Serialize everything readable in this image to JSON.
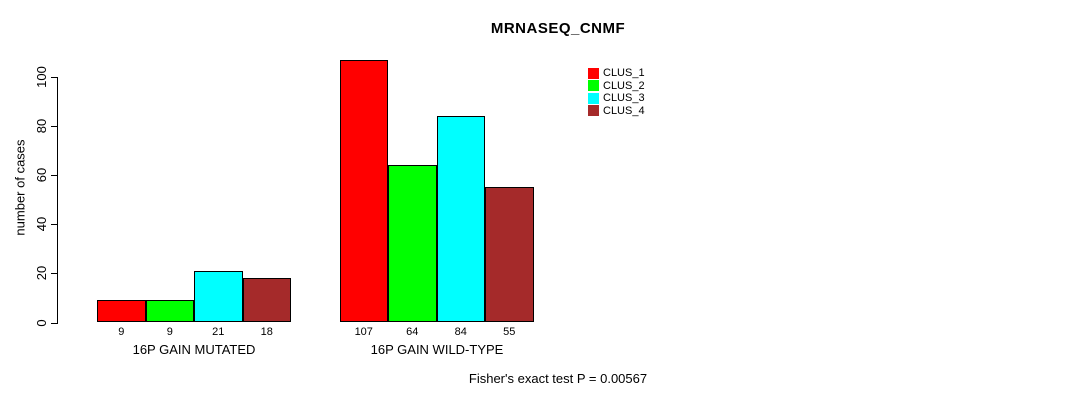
{
  "chart_data": {
    "type": "bar",
    "title": "MRNASEQ_CNMF",
    "ylabel": "number of cases",
    "xlabel": "",
    "ylim": [
      0,
      107
    ],
    "yticks": [
      0,
      20,
      40,
      60,
      80,
      100
    ],
    "grid": false,
    "legend_position": "top-right",
    "categories": [
      "16P GAIN MUTATED",
      "16P GAIN WILD-TYPE"
    ],
    "series": [
      {
        "name": "CLUS_1",
        "color": "#ff0000",
        "values": [
          9,
          107
        ]
      },
      {
        "name": "CLUS_2",
        "color": "#00ff00",
        "values": [
          9,
          64
        ]
      },
      {
        "name": "CLUS_3",
        "color": "#00ffff",
        "values": [
          21,
          84
        ]
      },
      {
        "name": "CLUS_4",
        "color": "#a52a2a",
        "values": [
          18,
          55
        ]
      }
    ],
    "bar_value_labels": [
      [
        "9",
        "9",
        "21",
        "18"
      ],
      [
        "107",
        "64",
        "84",
        "55"
      ]
    ],
    "annotation": "Fisher's exact test P = 0.00567"
  }
}
